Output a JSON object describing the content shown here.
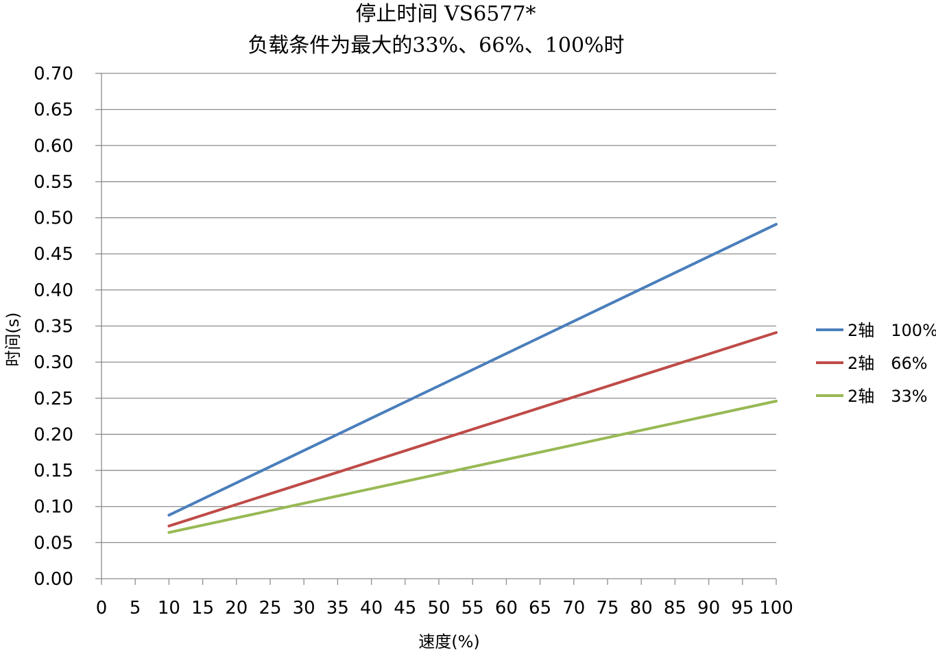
{
  "chart_data": {
    "type": "line",
    "title": "停止时间 VS6577*",
    "subtitle": "负载条件为最大的33%、66%、100%时",
    "xlabel": "速度(%)",
    "ylabel": "时间(s)",
    "xlim": [
      0,
      100
    ],
    "ylim": [
      0,
      0.7
    ],
    "xticks": [
      0,
      5,
      10,
      15,
      20,
      25,
      30,
      35,
      40,
      45,
      50,
      55,
      60,
      65,
      70,
      75,
      80,
      85,
      90,
      95,
      100
    ],
    "xtick_labels": [
      "0",
      "5",
      "10",
      "15",
      "20",
      "25",
      "30",
      "35",
      "40",
      "45",
      "50",
      "55",
      "60",
      "65",
      "70",
      "75",
      "80",
      "85",
      "90",
      "95",
      "100"
    ],
    "yticks": [
      0,
      0.05,
      0.1,
      0.15,
      0.2,
      0.25,
      0.3,
      0.35,
      0.4,
      0.45,
      0.5,
      0.55,
      0.6,
      0.65,
      0.7
    ],
    "ytick_labels": [
      "0.00",
      "0.05",
      "0.10",
      "0.15",
      "0.20",
      "0.25",
      "0.30",
      "0.35",
      "0.40",
      "0.45",
      "0.50",
      "0.55",
      "0.60",
      "0.65",
      "0.70"
    ],
    "grid": "horizontal",
    "legend_position": "right",
    "series": [
      {
        "name": "2轴　100%",
        "color": "#4a7ebb",
        "x": [
          10,
          100
        ],
        "y": [
          0.088,
          0.491
        ]
      },
      {
        "name": "2轴　66%",
        "color": "#be4b48",
        "x": [
          10,
          100
        ],
        "y": [
          0.073,
          0.341
        ]
      },
      {
        "name": "2轴　33%",
        "color": "#98b954",
        "x": [
          10,
          100
        ],
        "y": [
          0.064,
          0.246
        ]
      }
    ]
  }
}
